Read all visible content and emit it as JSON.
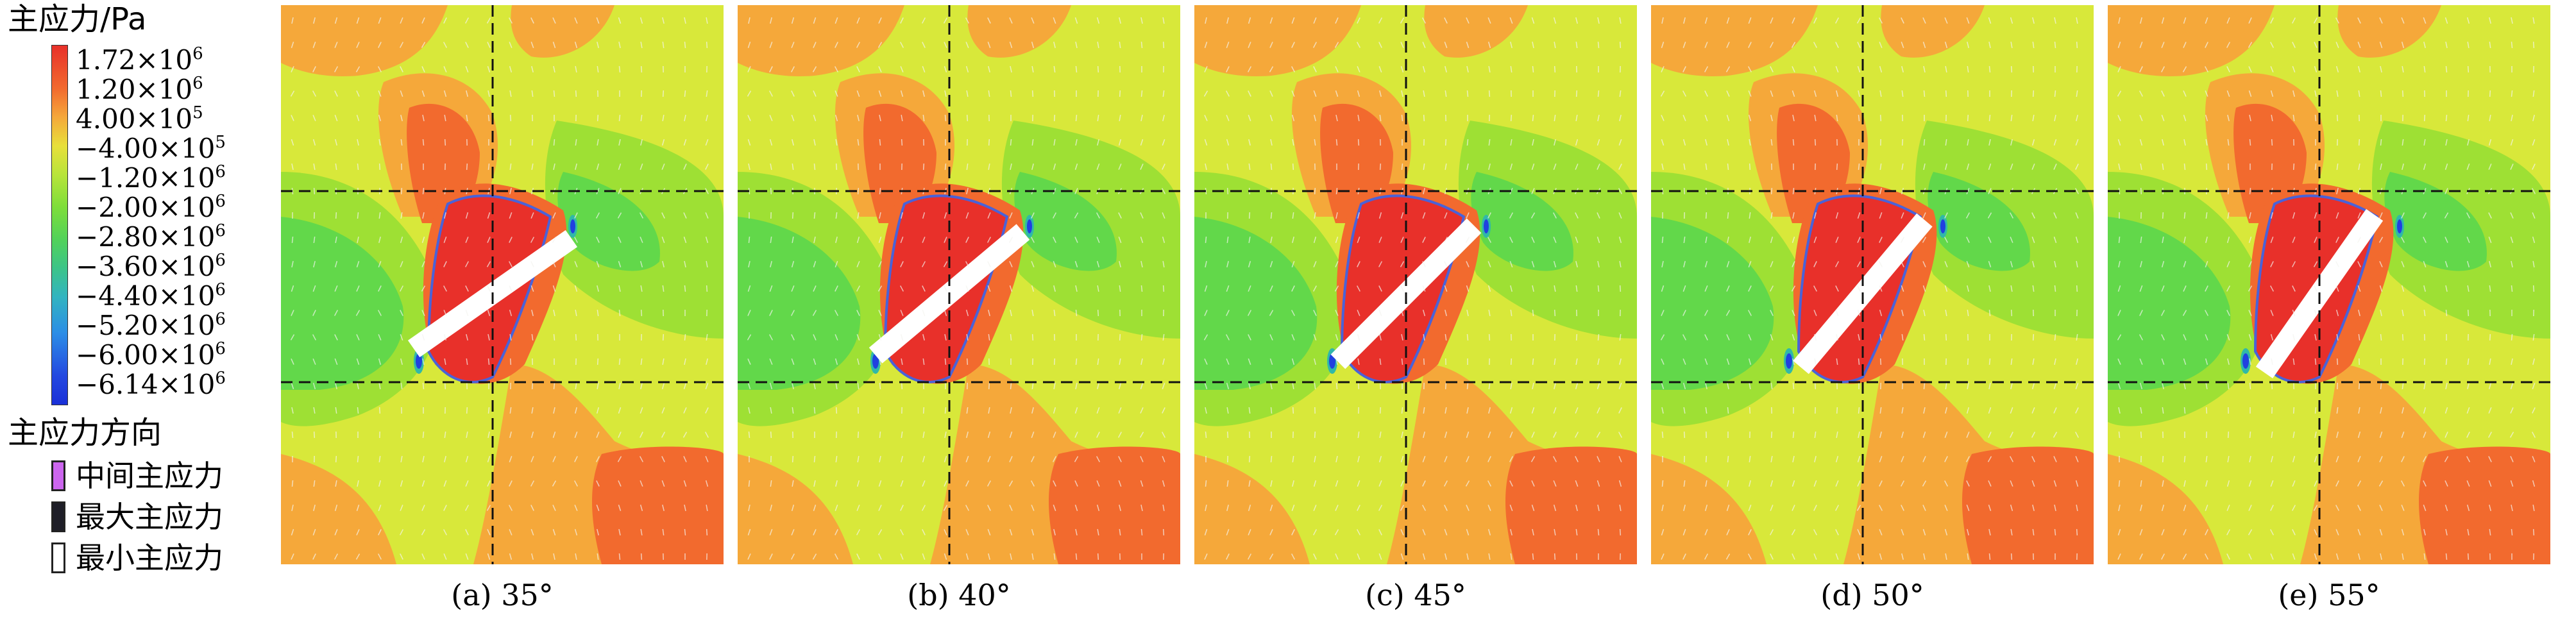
{
  "legend": {
    "title": "主应力/Pa",
    "ticks": [
      {
        "m": "1.72",
        "e": "6"
      },
      {
        "m": "1.20",
        "e": "6"
      },
      {
        "m": "4.00",
        "e": "5"
      },
      {
        "m": "−4.00",
        "e": "5"
      },
      {
        "m": "−1.20",
        "e": "6"
      },
      {
        "m": "−2.00",
        "e": "6"
      },
      {
        "m": "−2.80",
        "e": "6"
      },
      {
        "m": "−3.60",
        "e": "6"
      },
      {
        "m": "−4.40",
        "e": "6"
      },
      {
        "m": "−5.20",
        "e": "6"
      },
      {
        "m": "−6.00",
        "e": "6"
      },
      {
        "m": "−6.14",
        "e": "6"
      }
    ],
    "times_label": "×10",
    "direction_title": "主应力方向",
    "directions": [
      {
        "label": "中间主应力",
        "color": "#cc66ee"
      },
      {
        "label": "最大主应力",
        "color": "#1e1e28"
      },
      {
        "label": "最小主应力",
        "color": "#ffffff"
      }
    ]
  },
  "colors": {
    "c1": "#e8302a",
    "c2": "#f26a2e",
    "c3": "#f5a83a",
    "c4": "#d8e83a",
    "c5": "#9ee034",
    "c6": "#62d84a",
    "c7": "#40c870",
    "c8": "#30b8a8",
    "c9": "#2c8ee6",
    "c10": "#2040e0",
    "outline": "#4a62d8"
  },
  "panels": [
    {
      "caption": "(a) 35°",
      "angle": 35
    },
    {
      "caption": "(b) 40°",
      "angle": 40
    },
    {
      "caption": "(c) 45°",
      "angle": 45
    },
    {
      "caption": "(d) 50°",
      "angle": 50
    },
    {
      "caption": "(e) 55°",
      "angle": 55
    }
  ]
}
